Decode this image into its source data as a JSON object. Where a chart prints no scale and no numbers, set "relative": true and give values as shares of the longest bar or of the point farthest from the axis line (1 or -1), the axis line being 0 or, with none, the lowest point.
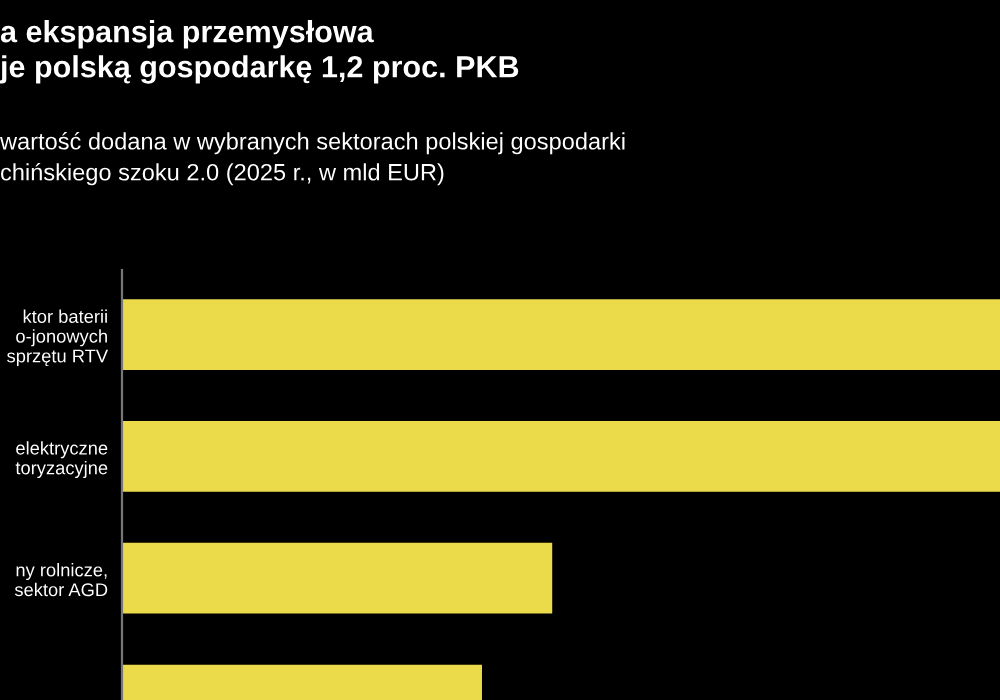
{
  "chart_data": {
    "type": "bar",
    "orientation": "horizontal",
    "relative": true,
    "title": "a ekspansja przemysłowa\nje polską gospodarkę 1,2 proc. PKB",
    "subtitle": "wartość dodana w wybranych sektorach polskiej gospodarki\nchińskiego szoku 2.0 (2025 r., w mld EUR)",
    "categories": [
      "ktor baterii\no-jonowych\nsprzętu RTV",
      "elektryczne\ntoryzacyjne",
      "ny rolnicze,\nsektor AGD",
      null
    ],
    "values": [
      1,
      1,
      0.49,
      0.41
    ],
    "color": "#ebdb4b"
  }
}
